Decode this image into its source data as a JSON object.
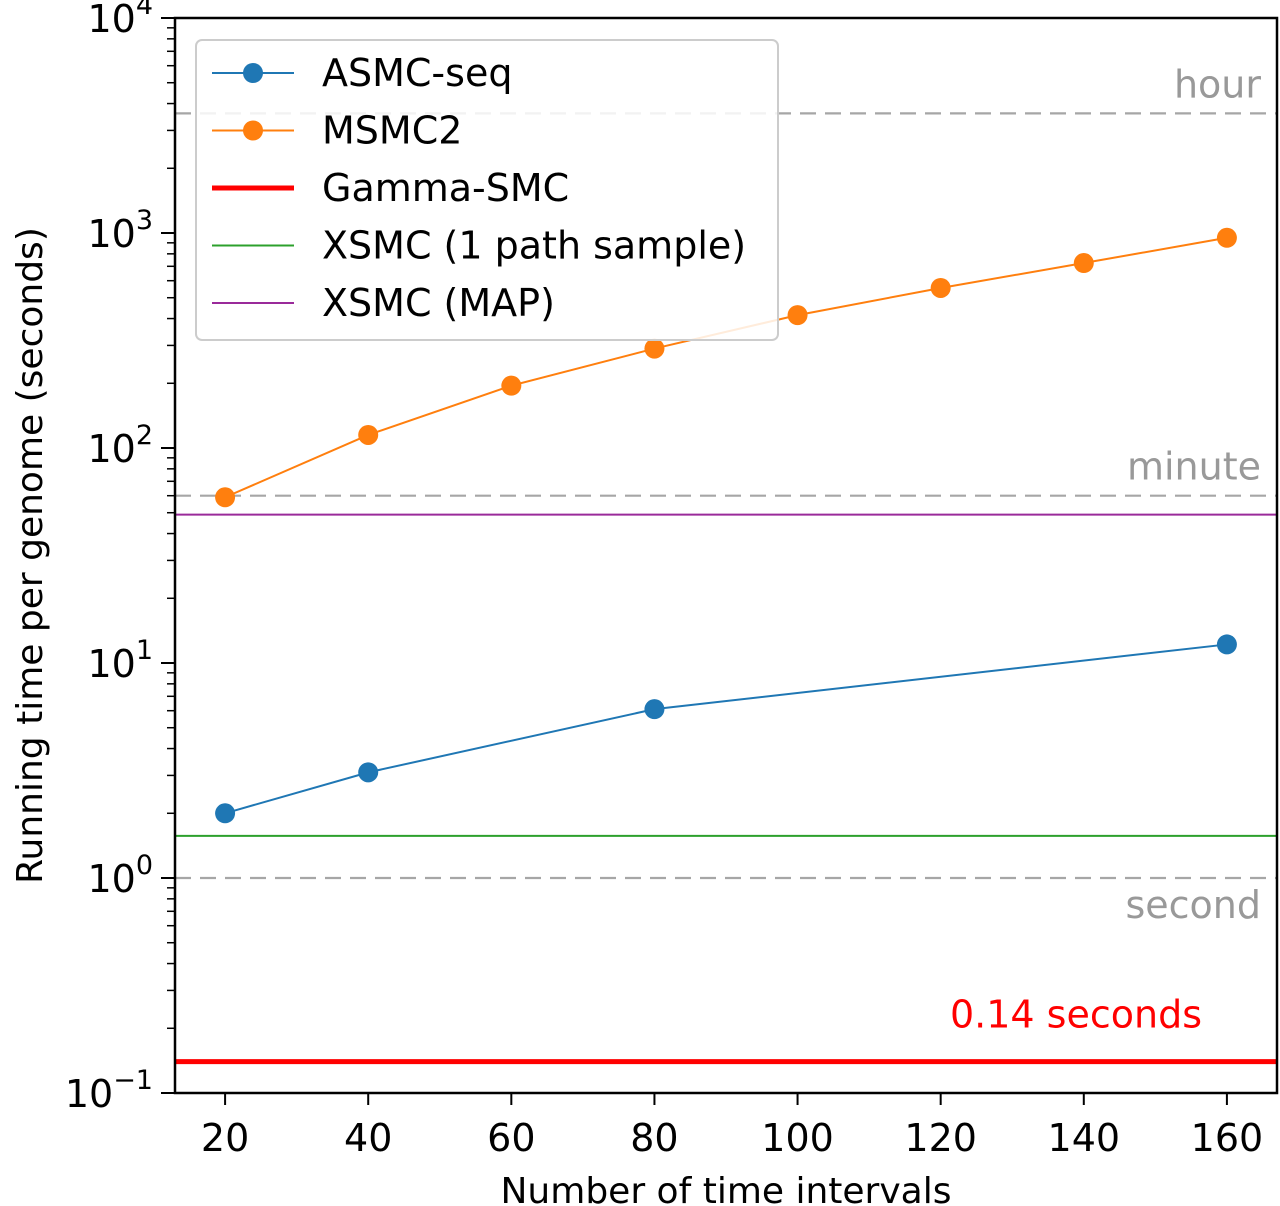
{
  "chart_data": {
    "type": "line",
    "xlabel": "Number of time intervals",
    "ylabel": "Running time per genome (seconds)",
    "xlim": [
      13,
      167
    ],
    "ylim": [
      0.1,
      10000
    ],
    "yscale": "log",
    "x_ticks": [
      20,
      40,
      60,
      80,
      100,
      120,
      140,
      160
    ],
    "y_ticks": [
      {
        "value": 0.1,
        "base": "10",
        "exp": "−1"
      },
      {
        "value": 1,
        "base": "10",
        "exp": "0"
      },
      {
        "value": 10,
        "base": "10",
        "exp": "1"
      },
      {
        "value": 100,
        "base": "10",
        "exp": "2"
      },
      {
        "value": 1000,
        "base": "10",
        "exp": "3"
      },
      {
        "value": 10000,
        "base": "10",
        "exp": "4"
      }
    ],
    "series": [
      {
        "name": "ASMC-seq",
        "color": "#1f77b4",
        "marker": true,
        "x": [
          20,
          40,
          80,
          160
        ],
        "y": [
          2.0,
          3.1,
          6.1,
          12.2
        ]
      },
      {
        "name": "MSMC2",
        "color": "#ff7f0e",
        "marker": true,
        "x": [
          20,
          40,
          60,
          80,
          100,
          120,
          140,
          160
        ],
        "y": [
          59,
          115,
          195,
          290,
          415,
          555,
          725,
          950
        ]
      },
      {
        "name": "Gamma-SMC",
        "color": "#ff0000",
        "marker": false,
        "constant": 0.14
      },
      {
        "name": "XSMC (1 path sample)",
        "color": "#2ca02c",
        "marker": false,
        "constant": 1.57
      },
      {
        "name": "XSMC (MAP)",
        "color": "#9a2a9a",
        "marker": false,
        "constant": 49
      }
    ],
    "reference_lines": [
      {
        "label": "hour",
        "value": 3600
      },
      {
        "label": "minute",
        "value": 60
      },
      {
        "label": "second",
        "value": 1
      }
    ],
    "annotations": [
      {
        "text": "0.14 seconds",
        "color": "#ff0000",
        "value": 0.14
      }
    ],
    "legend": "top-left",
    "grid": false
  }
}
